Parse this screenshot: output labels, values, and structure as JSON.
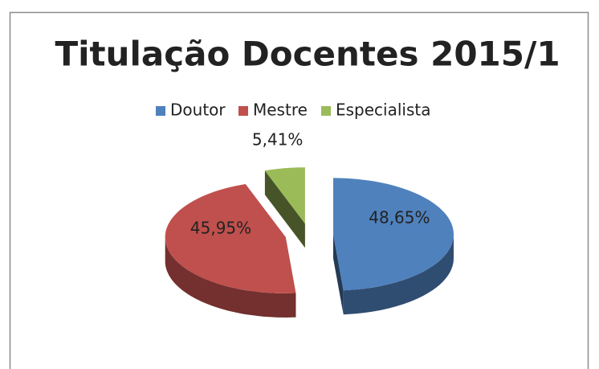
{
  "chart_data": {
    "type": "pie",
    "title": "Titulação Docentes 2015/1",
    "categories": [
      "Doutor",
      "Mestre",
      "Especialista"
    ],
    "values": [
      48.65,
      45.95,
      5.41
    ],
    "value_labels": [
      "48,65%",
      "45,95%",
      "5,41%"
    ],
    "colors": [
      "#4f81bd",
      "#c0504d",
      "#9bbb59"
    ],
    "legend": "top"
  }
}
